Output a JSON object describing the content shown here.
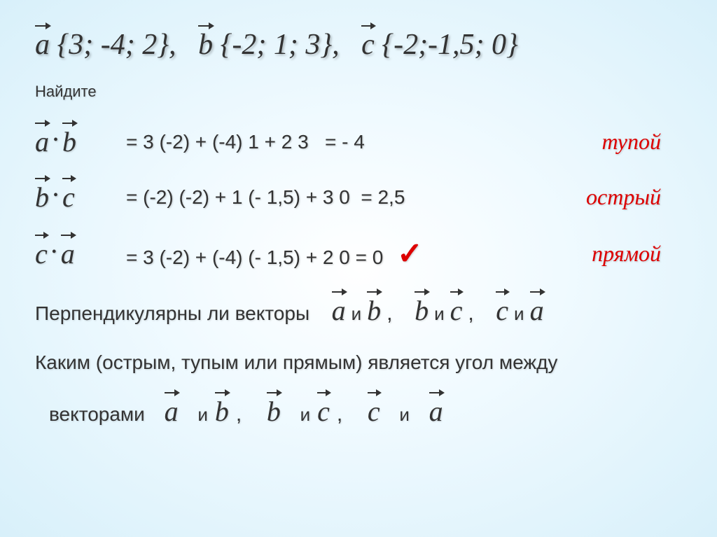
{
  "header": {
    "va": "a",
    "a_coords": "{3; -4; 2},",
    "vb": "b",
    "b_coords": "{-2; 1; 3},",
    "vc": "c",
    "c_coords": "{-2;-1,5; 0}"
  },
  "find_label": "Найдите",
  "rows": [
    {
      "l1": "a",
      "l2": "b",
      "calc": "= 3 (-2) + (-4) 1 + 2   3",
      "res": "= - 4",
      "angle": "тупой",
      "check": false
    },
    {
      "l1": "b",
      "l2": "c",
      "calc": "= (-2) (-2) + 1 (- 1,5) + 3   0",
      "res": "= 2,5",
      "angle": "острый",
      "check": false
    },
    {
      "l1": "c",
      "l2": "a",
      "calc": "= 3  (-2) + (-4) (- 1,5) + 2   0",
      "res": "= 0",
      "angle": "прямой",
      "check": true
    }
  ],
  "perp_question": "Перпендикулярны ли векторы",
  "angle_question": "Каким (острым, тупым или прямым) является угол между",
  "vectors_word": "векторами",
  "and_word": "и",
  "pairs": [
    {
      "v1": "a",
      "v2": "b"
    },
    {
      "v1": "b",
      "v2": "c"
    },
    {
      "v1": "c",
      "v2": "a"
    }
  ],
  "colors": {
    "angle_label": "#d00000",
    "text": "#333333",
    "check": "#d00000"
  },
  "style": {
    "header_fontsize": 42,
    "row_fontsize": 30,
    "angle_fontsize": 32
  }
}
